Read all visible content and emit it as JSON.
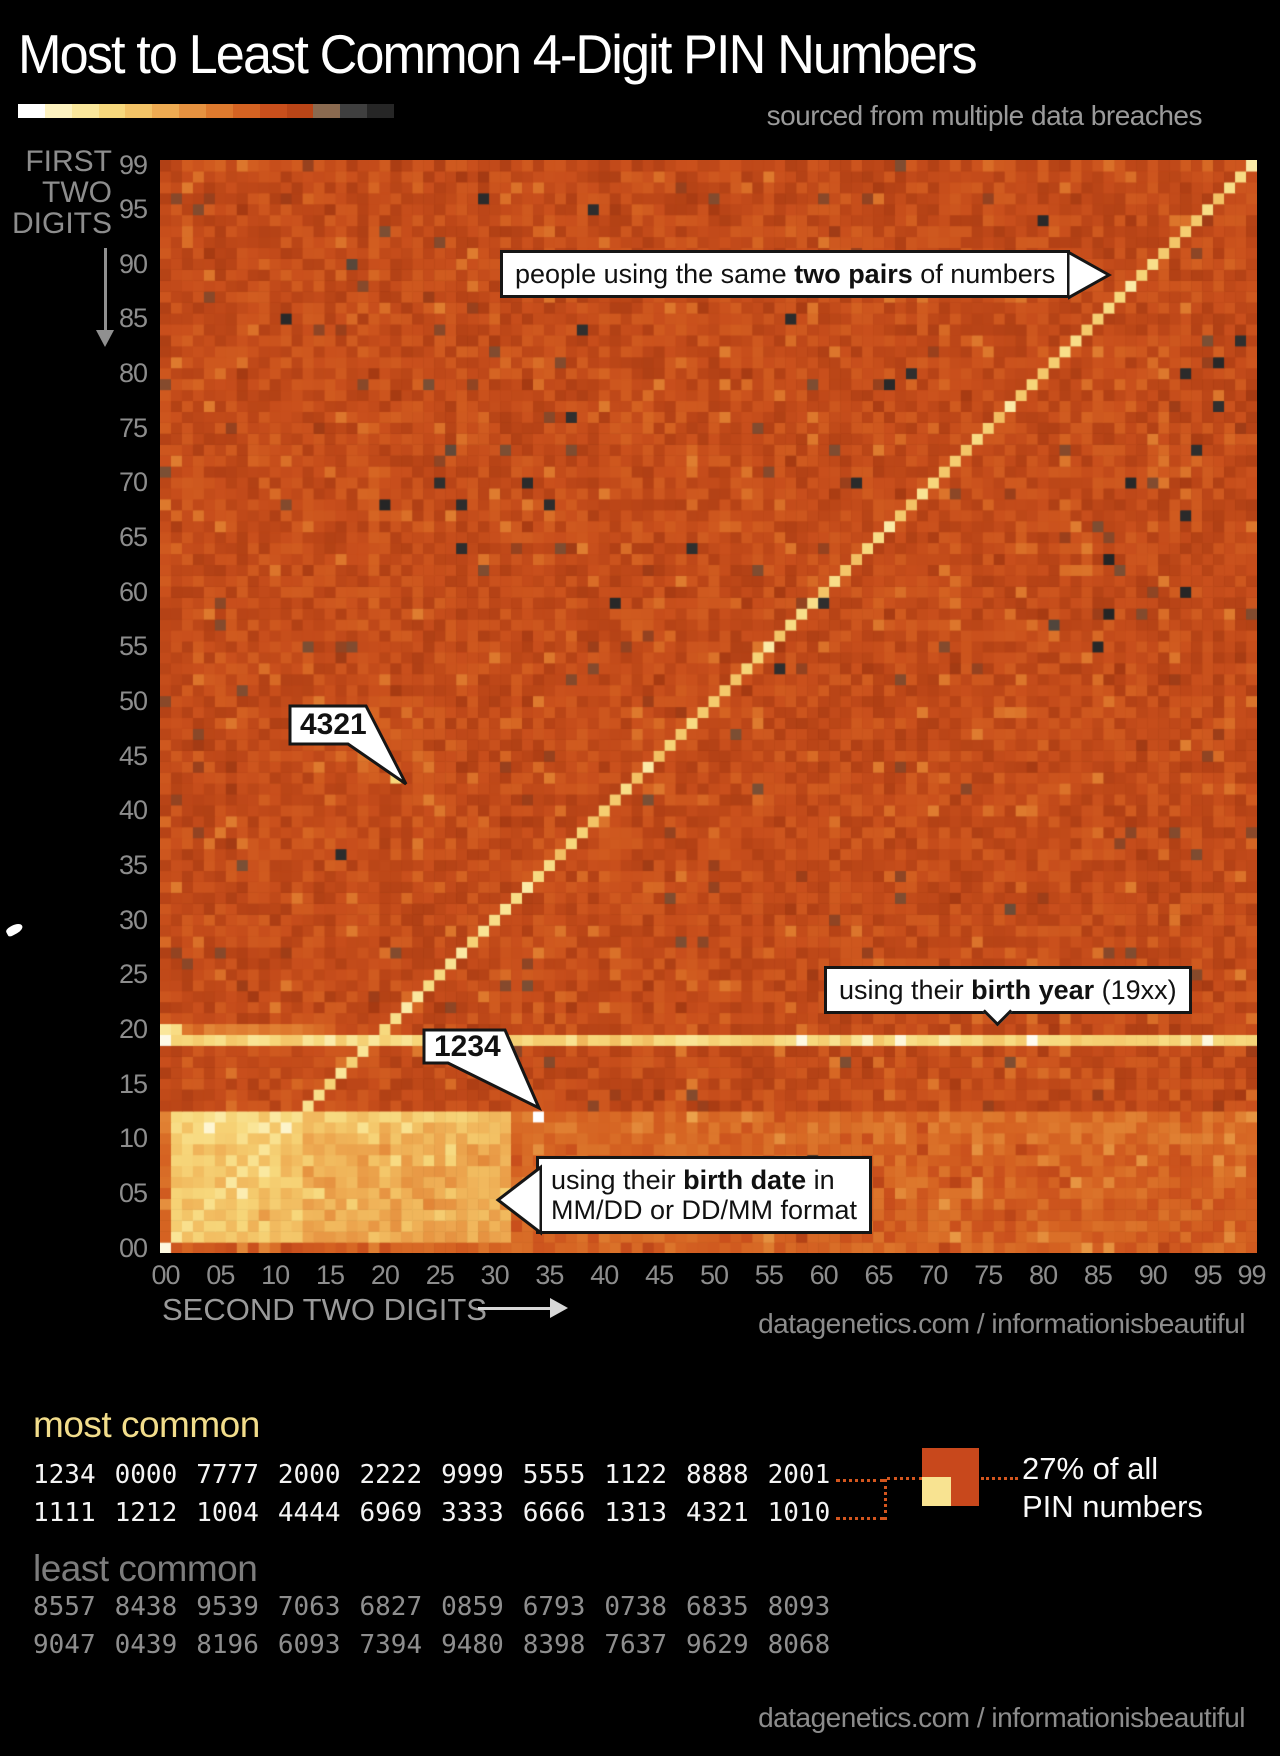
{
  "header": {
    "title": "Most to Least Common 4-Digit PIN Numbers",
    "subtitle": "sourced from multiple data breaches"
  },
  "axis": {
    "y_label_lines": [
      "FIRST",
      "TWO",
      "DIGITS"
    ],
    "x_label": "SECOND TWO DIGITS"
  },
  "annotations": {
    "two_pairs": {
      "pre": "people using the same ",
      "bold": "two pairs",
      "post": " of numbers"
    },
    "pin_4321": {
      "label": "4321"
    },
    "pin_1234": {
      "label": "1234"
    },
    "birth_year": {
      "pre": "using their ",
      "bold": "birth year",
      "post": " (19xx)"
    },
    "birth_date": {
      "pre": "using their ",
      "bold": "birth date",
      "post": " in",
      "line2": "MM/DD or DD/MM format"
    }
  },
  "credit": {
    "text": "datagenetics.com / informationisbeautiful"
  },
  "most_common": {
    "heading": "most common",
    "rows": [
      [
        "1234",
        "0000",
        "7777",
        "2000",
        "2222",
        "9999",
        "5555",
        "1122",
        "8888",
        "2001"
      ],
      [
        "1111",
        "1212",
        "1004",
        "4444",
        "6969",
        "3333",
        "6666",
        "1313",
        "4321",
        "1010"
      ]
    ]
  },
  "least_common": {
    "heading": "least common",
    "rows": [
      [
        "8557",
        "8438",
        "9539",
        "7063",
        "6827",
        "0859",
        "6793",
        "0738",
        "6835",
        "8093"
      ],
      [
        "9047",
        "0439",
        "8196",
        "6093",
        "7394",
        "9480",
        "8398",
        "7637",
        "9629",
        "8068"
      ]
    ]
  },
  "legend": {
    "line1": "27% of all",
    "line2": "PIN numbers",
    "big_color": "#c8481c",
    "small_color": "#f8e391"
  },
  "chart_data": {
    "type": "heatmap",
    "title": "Most to Least Common 4-Digit PIN Numbers",
    "xlabel": "SECOND TWO DIGITS",
    "ylabel": "FIRST TWO DIGITS",
    "grid": {
      "rows": 100,
      "cols": 100,
      "origin": "bottom-left"
    },
    "x_ticks": [
      "00",
      "05",
      "10",
      "15",
      "20",
      "25",
      "30",
      "35",
      "40",
      "45",
      "50",
      "55",
      "60",
      "65",
      "70",
      "75",
      "80",
      "85",
      "90",
      "95",
      "99"
    ],
    "y_ticks": [
      "00",
      "05",
      "10",
      "15",
      "20",
      "25",
      "30",
      "35",
      "40",
      "45",
      "50",
      "55",
      "60",
      "65",
      "70",
      "75",
      "80",
      "85",
      "90",
      "95",
      "99"
    ],
    "legend_swatches": [
      "#ffffff",
      "#fdf2c0",
      "#fae79b",
      "#f7d87c",
      "#f3c366",
      "#eeab52",
      "#e69240",
      "#de7a2e",
      "#d56322",
      "#c94f1c",
      "#ba4517",
      "#8a6a50",
      "#3f3f3f",
      "#262626"
    ],
    "palette_stops": [
      [
        0.0,
        "#181818"
      ],
      [
        0.05,
        "#2d2d2d"
      ],
      [
        0.1,
        "#4e443c"
      ],
      [
        0.15,
        "#7a4f35"
      ],
      [
        0.2,
        "#a63a12"
      ],
      [
        0.26,
        "#ba4517"
      ],
      [
        0.32,
        "#c94f1c"
      ],
      [
        0.4,
        "#d56322"
      ],
      [
        0.48,
        "#de7a2e"
      ],
      [
        0.56,
        "#e69240"
      ],
      [
        0.64,
        "#eeab52"
      ],
      [
        0.72,
        "#f3c366"
      ],
      [
        0.8,
        "#f7d87c"
      ],
      [
        0.88,
        "#fae79b"
      ],
      [
        0.94,
        "#fdf2c0"
      ],
      [
        1.0,
        "#ffffff"
      ]
    ],
    "pattern": {
      "base_level": 0.3,
      "noise": 0.14,
      "repeated_pair_diagonal": {
        "level_min": 0.7,
        "level_var": 0.14,
        "lowcorner_bonus": 0.06
      },
      "birth_year_row": 19,
      "birth_year_boost": 0.5,
      "year_2000_row": 20,
      "year_2000_cols_max": 15,
      "year_2000_boost": 0.16,
      "birth_date_region": {
        "row_min": 1,
        "row_max": 12,
        "col_min": 1,
        "col_max": 31,
        "boost": 0.24
      },
      "ambiguous_mmdd_region": {
        "row_max": 12,
        "col_max": 12,
        "boost": 0.1
      },
      "low_rows_boost": 0.09,
      "rows_10_12_boost": 0.05,
      "row_12_boost": 0.06,
      "col_19_boost": 0.04
    },
    "most_common_cells": [
      {
        "pin": "1234",
        "level": 1.0
      },
      {
        "pin": "0000",
        "level": 0.97
      },
      {
        "pin": "7777",
        "level": 0.9
      },
      {
        "pin": "2000",
        "level": 0.88
      },
      {
        "pin": "2222",
        "level": 0.9
      },
      {
        "pin": "9999",
        "level": 0.9
      },
      {
        "pin": "5555",
        "level": 0.9
      },
      {
        "pin": "1122",
        "level": 0.85
      },
      {
        "pin": "8888",
        "level": 0.9
      },
      {
        "pin": "2001",
        "level": 0.82
      },
      {
        "pin": "1111",
        "level": 0.95
      },
      {
        "pin": "1212",
        "level": 0.85
      },
      {
        "pin": "1004",
        "level": 0.82
      },
      {
        "pin": "4444",
        "level": 0.9
      },
      {
        "pin": "6969",
        "level": 0.86
      },
      {
        "pin": "3333",
        "level": 0.9
      },
      {
        "pin": "6666",
        "level": 0.9
      },
      {
        "pin": "1313",
        "level": 0.85
      },
      {
        "pin": "4321",
        "level": 0.8
      },
      {
        "pin": "1010",
        "level": 0.85
      }
    ],
    "least_common_pins": [
      "8557",
      "8438",
      "9539",
      "7063",
      "6827",
      "0859",
      "6793",
      "0738",
      "6835",
      "8093",
      "9047",
      "0439",
      "8196",
      "6093",
      "7394",
      "9480",
      "8398",
      "7637",
      "9629",
      "8068"
    ],
    "dark_level": 0.03,
    "extra_dark_cells": 16,
    "extra_gray_cells": 4,
    "seed": 42
  }
}
